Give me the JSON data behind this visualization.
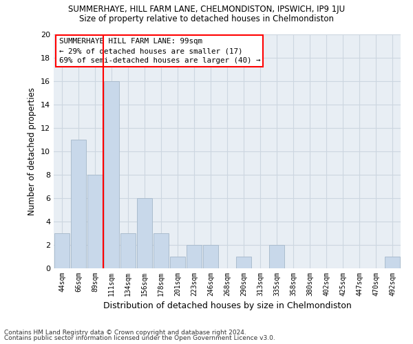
{
  "title": "SUMMERHAYE, HILL FARM LANE, CHELMONDISTON, IPSWICH, IP9 1JU",
  "subtitle": "Size of property relative to detached houses in Chelmondiston",
  "xlabel": "Distribution of detached houses by size in Chelmondiston",
  "ylabel": "Number of detached properties",
  "categories": [
    "44sqm",
    "66sqm",
    "89sqm",
    "111sqm",
    "134sqm",
    "156sqm",
    "178sqm",
    "201sqm",
    "223sqm",
    "246sqm",
    "268sqm",
    "290sqm",
    "313sqm",
    "335sqm",
    "358sqm",
    "380sqm",
    "402sqm",
    "425sqm",
    "447sqm",
    "470sqm",
    "492sqm"
  ],
  "values": [
    3,
    11,
    8,
    16,
    3,
    6,
    3,
    1,
    2,
    2,
    0,
    1,
    0,
    2,
    0,
    0,
    0,
    0,
    0,
    0,
    1
  ],
  "bar_color": "#c8d8ea",
  "bar_edge_color": "#aabcce",
  "vline_x_index": 2.5,
  "vline_color": "red",
  "ylim": [
    0,
    20
  ],
  "yticks": [
    0,
    2,
    4,
    6,
    8,
    10,
    12,
    14,
    16,
    18,
    20
  ],
  "annotation_lines": [
    "SUMMERHAYE HILL FARM LANE: 99sqm",
    "← 29% of detached houses are smaller (17)",
    "69% of semi-detached houses are larger (40) →"
  ],
  "annotation_box_color": "white",
  "annotation_box_edge_color": "red",
  "grid_color": "#ccd6e0",
  "plot_bg_color": "#e8eef4",
  "fig_bg_color": "#ffffff",
  "footer_lines": [
    "Contains HM Land Registry data © Crown copyright and database right 2024.",
    "Contains public sector information licensed under the Open Government Licence v3.0."
  ]
}
